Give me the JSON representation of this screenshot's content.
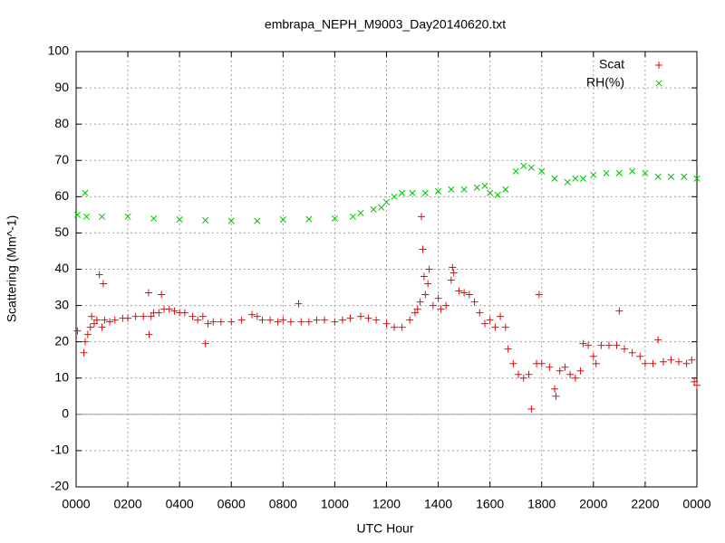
{
  "chart_data": {
    "type": "scatter",
    "title": "embrapa_NEPH_M9003_Day20140620.txt",
    "xlabel": "UTC Hour",
    "ylabel": "Scattering (Mm^-1)",
    "xlim": [
      0,
      24
    ],
    "ylim": [
      -20,
      100
    ],
    "xticks": [
      {
        "value": 0,
        "label": "0000"
      },
      {
        "value": 2,
        "label": "0200"
      },
      {
        "value": 4,
        "label": "0400"
      },
      {
        "value": 6,
        "label": "0600"
      },
      {
        "value": 8,
        "label": "0800"
      },
      {
        "value": 10,
        "label": "1000"
      },
      {
        "value": 12,
        "label": "1200"
      },
      {
        "value": 14,
        "label": "1400"
      },
      {
        "value": 16,
        "label": "1600"
      },
      {
        "value": 18,
        "label": "1800"
      },
      {
        "value": 20,
        "label": "2000"
      },
      {
        "value": 22,
        "label": "2200"
      },
      {
        "value": 24,
        "label": "0000"
      }
    ],
    "yticks": [
      -20,
      -10,
      0,
      10,
      20,
      30,
      40,
      50,
      60,
      70,
      80,
      90,
      100
    ],
    "grid": true,
    "zeroaxis": true,
    "legend": "top-right",
    "series": [
      {
        "name": "Scat",
        "color": "#ff0000",
        "marker": "plus",
        "x": [
          0.05,
          0.3,
          0.35,
          0.45,
          0.55,
          0.6,
          0.7,
          0.8,
          0.9,
          1.0,
          1.05,
          1.1,
          1.3,
          1.5,
          1.8,
          2.0,
          2.3,
          2.6,
          2.8,
          2.82,
          2.9,
          3.0,
          3.2,
          3.3,
          3.4,
          3.6,
          3.8,
          4.0,
          4.2,
          4.5,
          4.7,
          4.9,
          5.0,
          5.1,
          5.3,
          5.6,
          6.0,
          6.4,
          6.8,
          7.0,
          7.2,
          7.5,
          7.8,
          8.0,
          8.3,
          8.6,
          8.7,
          9.0,
          9.3,
          9.6,
          10.0,
          10.3,
          10.6,
          11.0,
          11.3,
          11.6,
          12.0,
          12.3,
          12.6,
          12.9,
          13.1,
          13.2,
          13.3,
          13.35,
          13.4,
          13.45,
          13.5,
          13.6,
          13.65,
          13.8,
          14.0,
          14.1,
          14.3,
          14.5,
          14.55,
          14.6,
          14.8,
          15.0,
          15.2,
          15.4,
          15.6,
          15.8,
          16.0,
          16.2,
          16.4,
          16.6,
          16.7,
          16.9,
          17.1,
          17.3,
          17.5,
          17.6,
          17.8,
          17.9,
          18.0,
          18.3,
          18.5,
          18.55,
          18.7,
          18.9,
          19.1,
          19.3,
          19.5,
          19.6,
          19.8,
          20.0,
          20.1,
          20.3,
          20.6,
          20.9,
          21.0,
          21.2,
          21.5,
          21.8,
          22.0,
          22.3,
          22.5,
          22.7,
          23.0,
          23.3,
          23.6,
          23.8,
          23.9,
          24.0
        ],
        "values": [
          23,
          17,
          20,
          22,
          24,
          27,
          25,
          26,
          38.5,
          24,
          36,
          26,
          25.5,
          26,
          26.5,
          26.5,
          27,
          27,
          33.5,
          22,
          27,
          28,
          28,
          33,
          29,
          29,
          28.5,
          28,
          28,
          27,
          26,
          27,
          19.5,
          25,
          25.5,
          25.5,
          25.5,
          26,
          27.5,
          27,
          26,
          26,
          25.5,
          26,
          25.5,
          30.5,
          25.5,
          25.5,
          26,
          26,
          25.5,
          26,
          26.5,
          27,
          26.5,
          26,
          25,
          24,
          24,
          26,
          28,
          29,
          31,
          54.5,
          45.5,
          38,
          33,
          36,
          40,
          30,
          32,
          29,
          30,
          37,
          40.5,
          39,
          34,
          33.5,
          33,
          31,
          28,
          25,
          26,
          24,
          27,
          24,
          18,
          14,
          11,
          10,
          11,
          1.5,
          14,
          33,
          14,
          13,
          7,
          5,
          12,
          13,
          11,
          10,
          12,
          19.5,
          19,
          16,
          14,
          19,
          19,
          19,
          28.5,
          18,
          17,
          16,
          14,
          14,
          20.5,
          14.5,
          15,
          14.5,
          14,
          15,
          9,
          8
        ]
      },
      {
        "name": "RH(%)",
        "color": "#00c000",
        "marker": "cross",
        "x": [
          0.05,
          0.35,
          0.4,
          1,
          2,
          3,
          4,
          5,
          6,
          7,
          8,
          9,
          10,
          10.7,
          11,
          11.5,
          11.8,
          12,
          12.3,
          12.6,
          13,
          13.5,
          14,
          14.5,
          15,
          15.5,
          15.8,
          16,
          16.3,
          16.6,
          17,
          17.3,
          17.6,
          18,
          18.5,
          19,
          19.3,
          19.6,
          20,
          20.5,
          21,
          21.5,
          22,
          22.5,
          23,
          23.5,
          24
        ],
        "values": [
          55,
          61,
          54.5,
          54.5,
          54.5,
          54,
          53.7,
          53.5,
          53.3,
          53.3,
          53.7,
          53.8,
          54,
          54.5,
          55.5,
          56.5,
          57,
          58.5,
          60,
          61,
          61,
          61,
          61.5,
          62,
          62,
          62.5,
          63,
          61,
          60.5,
          62,
          67,
          68.5,
          68,
          67,
          65,
          64,
          65,
          65,
          66,
          66.5,
          66.5,
          67,
          66.5,
          65.5,
          65.5,
          65.5,
          65
        ]
      }
    ]
  }
}
